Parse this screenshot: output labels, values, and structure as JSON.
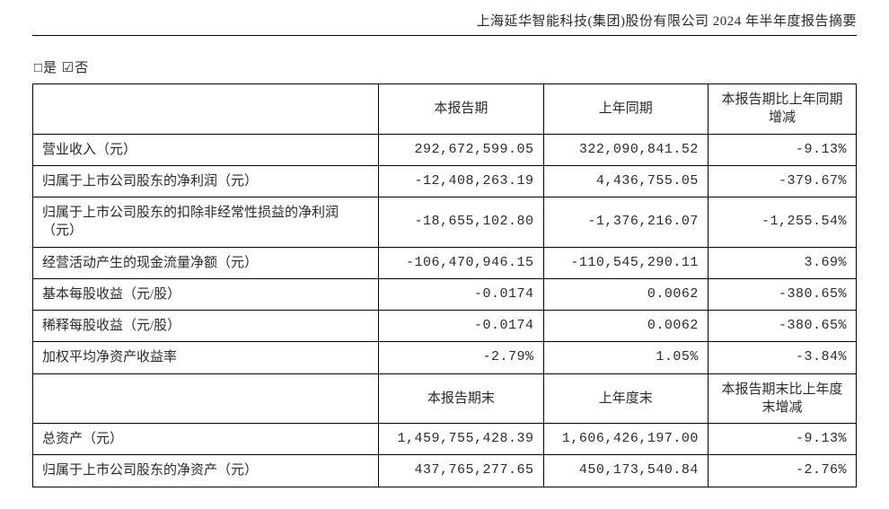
{
  "header": {
    "title": "上海延华智能科技(集团)股份有限公司 2024 年半年度报告摘要"
  },
  "checkline": "□是  ☑否",
  "table": {
    "head1": {
      "c0": "",
      "c1": "本报告期",
      "c2": "上年同期",
      "c3": "本报告期比上年同期增减"
    },
    "rows": [
      {
        "label": "营业收入（元）",
        "c1": "292,672,599.05",
        "c2": "322,090,841.52",
        "c3": "-9.13%"
      },
      {
        "label": "归属于上市公司股东的净利润（元）",
        "c1": "-12,408,263.19",
        "c2": "4,436,755.05",
        "c3": "-379.67%"
      },
      {
        "label": "归属于上市公司股东的扣除非经常性损益的净利润（元）",
        "c1": "-18,655,102.80",
        "c2": "-1,376,216.07",
        "c3": "-1,255.54%"
      },
      {
        "label": "经营活动产生的现金流量净额（元）",
        "c1": "-106,470,946.15",
        "c2": "-110,545,290.11",
        "c3": "3.69%"
      },
      {
        "label": "基本每股收益（元/股）",
        "c1": "-0.0174",
        "c2": "0.0062",
        "c3": "-380.65%"
      },
      {
        "label": "稀释每股收益（元/股）",
        "c1": "-0.0174",
        "c2": "0.0062",
        "c3": "-380.65%"
      },
      {
        "label": "加权平均净资产收益率",
        "c1": "-2.79%",
        "c2": "1.05%",
        "c3": "-3.84%"
      }
    ],
    "head2": {
      "c0": "",
      "c1": "本报告期末",
      "c2": "上年度末",
      "c3": "本报告期末比上年度末增减"
    },
    "rows2": [
      {
        "label": "总资产（元）",
        "c1": "1,459,755,428.39",
        "c2": "1,606,426,197.00",
        "c3": "-9.13%"
      },
      {
        "label": "归属于上市公司股东的净资产（元）",
        "c1": "437,765,277.65",
        "c2": "450,173,540.84",
        "c3": "-2.76%"
      }
    ]
  },
  "style": {
    "text_color": "#2a2a2a",
    "border_color": "#000000",
    "background_color": "#ffffff",
    "font_size_body": 15,
    "font_family_label": "SimSun",
    "font_family_num": "Courier New"
  }
}
